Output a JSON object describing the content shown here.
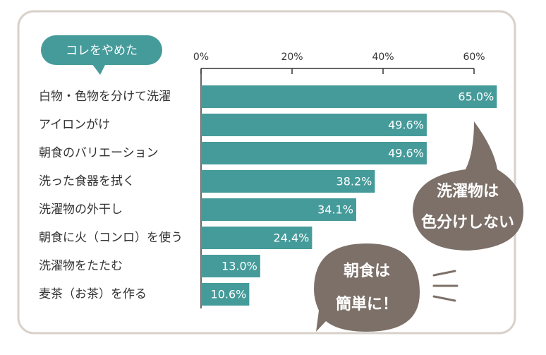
{
  "chart_data": {
    "type": "bar",
    "orientation": "horizontal",
    "title": "コレをやめた",
    "categories": [
      "白物・色物を分けて洗濯",
      "アイロンがけ",
      "朝食のバリエーション",
      "洗った食器を拭く",
      "洗濯物の外干し",
      "朝食に火（コンロ）を使う",
      "洗濯物をたたむ",
      "麦茶（お茶）を作る"
    ],
    "values": [
      65.0,
      49.6,
      49.6,
      38.2,
      34.1,
      24.4,
      13.0,
      10.6
    ],
    "value_labels": [
      "65.0%",
      "49.6%",
      "49.6%",
      "38.2%",
      "34.1%",
      "24.4%",
      "13.0%",
      "10.6%"
    ],
    "color": "#459b9a",
    "xlim": [
      0,
      60
    ],
    "xticks": [
      {
        "value": 0,
        "label": "0%"
      },
      {
        "value": 20,
        "label": "20%"
      },
      {
        "value": 40,
        "label": "40%"
      },
      {
        "value": 60,
        "label": "60%"
      }
    ],
    "annotations": [
      [
        "洗濯物は",
        "色分けしない"
      ],
      [
        "朝食は",
        "簡単に！"
      ]
    ]
  }
}
